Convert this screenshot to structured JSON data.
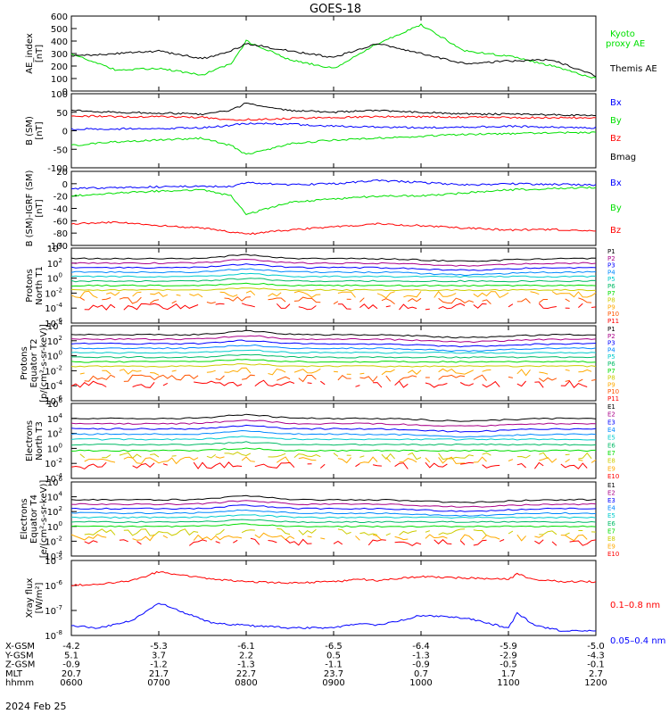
{
  "title": "GOES-18",
  "date_label": "2024 Feb 25",
  "colors": {
    "black": "#000000",
    "green": "#00e000",
    "blue": "#0000ff",
    "red": "#ff0000",
    "p_scale": [
      "#000000",
      "#aa0088",
      "#0000ff",
      "#0088ff",
      "#00cccc",
      "#00bb66",
      "#00dd00",
      "#cccc00",
      "#ffaa00",
      "#ff5500",
      "#ff0000",
      "#cc0000"
    ],
    "e_scale": [
      "#000000",
      "#aa0088",
      "#0000ff",
      "#0088ff",
      "#00cccc",
      "#00bb66",
      "#00dd00",
      "#cccc00",
      "#ffaa00",
      "#ff0000",
      "#cc0000"
    ]
  },
  "x_ticks": [
    "0600",
    "0700",
    "0800",
    "0900",
    "1000",
    "1100",
    "1200"
  ],
  "ephemeris": {
    "labels": [
      "X-GSM",
      "Y-GSM",
      "Z-GSM",
      "MLT",
      "hhmm"
    ],
    "rows": [
      [
        "-4.2",
        "-5.3",
        "-6.1",
        "-6.5",
        "-6.4",
        "-5.9",
        "-5.0"
      ],
      [
        "5.1",
        "3.7",
        "2.2",
        "0.5",
        "-1.3",
        "-2.9",
        "-4.3"
      ],
      [
        "-0.9",
        "-1.2",
        "-1.3",
        "-1.1",
        "-0.9",
        "-0.5",
        "-0.1"
      ],
      [
        "20.7",
        "21.7",
        "22.7",
        "23.7",
        "0.7",
        "1.7",
        "2.7"
      ],
      [
        "0600",
        "0700",
        "0800",
        "0900",
        "1000",
        "1100",
        "1200"
      ]
    ]
  },
  "chart_data": [
    {
      "id": "ae",
      "type": "line",
      "ylabel": "AE_index\n[nT]",
      "ylim": [
        0,
        600
      ],
      "yticks": [
        "600",
        "500",
        "400",
        "300",
        "200",
        "100",
        "0"
      ],
      "legend": [
        {
          "text": "Kyoto\nproxy AE",
          "color": "#00e000"
        },
        {
          "text": "Themis AE",
          "color": "#000000"
        }
      ],
      "x_hours": [
        6,
        6.5,
        7,
        7.5,
        7.83,
        8,
        8.5,
        9,
        9.5,
        10,
        10.5,
        11,
        11.5,
        12
      ],
      "series": [
        {
          "name": "Kyoto proxy AE",
          "color": "#00e000",
          "values": [
            300,
            170,
            180,
            130,
            220,
            400,
            250,
            180,
            380,
            530,
            320,
            280,
            200,
            100
          ]
        },
        {
          "name": "Themis AE",
          "color": "#000000",
          "values": [
            280,
            300,
            320,
            260,
            320,
            380,
            320,
            270,
            380,
            300,
            220,
            240,
            250,
            120
          ]
        }
      ]
    },
    {
      "id": "b",
      "type": "line",
      "ylabel": "B (SM)\n[nT]",
      "ylim": [
        -100,
        100
      ],
      "yticks": [
        "100",
        "50",
        "0",
        "-50",
        "-100"
      ],
      "legend": [
        {
          "text": "Bx",
          "color": "#0000ff"
        },
        {
          "text": "By",
          "color": "#00e000"
        },
        {
          "text": "Bz",
          "color": "#ff0000"
        },
        {
          "text": "Bmag",
          "color": "#000000"
        }
      ],
      "x_hours": [
        6,
        6.5,
        7,
        7.5,
        7.83,
        8,
        8.5,
        9,
        9.5,
        10,
        10.5,
        11,
        11.5,
        12
      ],
      "series": [
        {
          "name": "Bx",
          "color": "#0000ff",
          "values": [
            5,
            5,
            6,
            8,
            15,
            20,
            18,
            12,
            10,
            8,
            10,
            12,
            10,
            8
          ]
        },
        {
          "name": "By",
          "color": "#00e000",
          "values": [
            -40,
            -30,
            -25,
            -20,
            -40,
            -65,
            -35,
            -25,
            -20,
            -15,
            -10,
            -8,
            -5,
            -5
          ]
        },
        {
          "name": "Bz",
          "color": "#ff0000",
          "values": [
            40,
            38,
            38,
            36,
            30,
            30,
            33,
            36,
            38,
            38,
            37,
            36,
            35,
            35
          ]
        },
        {
          "name": "Bmag",
          "color": "#000000",
          "values": [
            55,
            50,
            48,
            45,
            55,
            75,
            55,
            50,
            55,
            50,
            45,
            45,
            43,
            42
          ]
        }
      ]
    },
    {
      "id": "b_igrf",
      "type": "line",
      "ylabel": "B (SM)-IGRF (SM)\n[nT]",
      "ylim": [
        -100,
        20
      ],
      "yticks": [
        "20",
        "0",
        "-20",
        "-40",
        "-60",
        "-80",
        "-100"
      ],
      "legend": [
        {
          "text": "Bx",
          "color": "#0000ff"
        },
        {
          "text": "By",
          "color": "#00e000"
        },
        {
          "text": "Bz",
          "color": "#ff0000"
        }
      ],
      "x_hours": [
        6,
        6.5,
        7,
        7.5,
        7.83,
        8,
        8.5,
        9,
        9.5,
        10,
        10.5,
        11,
        11.5,
        12
      ],
      "series": [
        {
          "name": "Bx",
          "color": "#0000ff",
          "values": [
            -8,
            -6,
            -5,
            -4,
            -5,
            2,
            -2,
            0,
            5,
            2,
            -2,
            0,
            -1,
            -2
          ]
        },
        {
          "name": "By",
          "color": "#00e000",
          "values": [
            -20,
            -15,
            -12,
            -10,
            -20,
            -50,
            -30,
            -25,
            -20,
            -20,
            -15,
            -10,
            -8,
            -6
          ]
        },
        {
          "name": "Bz",
          "color": "#ff0000",
          "values": [
            -65,
            -62,
            -68,
            -72,
            -78,
            -82,
            -75,
            -70,
            -65,
            -68,
            -72,
            -75,
            -74,
            -76
          ]
        }
      ]
    },
    {
      "id": "p_n",
      "type": "line",
      "log": true,
      "ylabel": "Protons\nNorth T1",
      "ylim_exp": [
        -6,
        4
      ],
      "yticks_exp": [
        4,
        2,
        0,
        -2,
        -4,
        -6
      ],
      "channels": [
        "P1",
        "P2",
        "P3",
        "P4",
        "P5",
        "P6",
        "P7",
        "P8",
        "P9",
        "P10",
        "P11"
      ],
      "levels_exp": [
        2.6,
        2.0,
        1.4,
        0.8,
        0.2,
        -0.4,
        -1.0,
        -1.6,
        -2.2,
        -3.0,
        -3.8
      ]
    },
    {
      "id": "p_e",
      "type": "line",
      "log": true,
      "ylabel": "Protons\nEquator T2\n[p/(cm²-s-sr-keV)]",
      "ylim_exp": [
        -6,
        4
      ],
      "yticks_exp": [
        4,
        2,
        0,
        -2,
        -4,
        -6
      ],
      "channels": [
        "P1",
        "P2",
        "P3",
        "P4",
        "P5",
        "P6",
        "P7",
        "P8",
        "P9",
        "P10",
        "P11"
      ],
      "levels_exp": [
        2.8,
        2.2,
        1.6,
        1.0,
        0.4,
        -0.2,
        -0.8,
        -1.4,
        -2.2,
        -3.0,
        -3.8
      ]
    },
    {
      "id": "e_n",
      "type": "line",
      "log": true,
      "ylabel": "Electrons\nNorth T3",
      "ylim_exp": [
        -4,
        6
      ],
      "yticks_exp": [
        6,
        4,
        2,
        0,
        -2,
        -4
      ],
      "channels": [
        "E1",
        "E2",
        "E3",
        "E4",
        "E5",
        "E6",
        "E7",
        "E8",
        "E9",
        "E10"
      ],
      "levels_exp": [
        4.0,
        3.3,
        2.6,
        1.9,
        1.2,
        0.5,
        -0.3,
        -1.0,
        -1.6,
        -2.3
      ]
    },
    {
      "id": "e_e",
      "type": "line",
      "log": true,
      "ylabel": "Electrons\nEquator T4\n[e/(cm²-s-sr-keV)]",
      "ylim_exp": [
        -4,
        6
      ],
      "yticks_exp": [
        6,
        4,
        2,
        0,
        -2,
        -4
      ],
      "channels": [
        "E1",
        "E2",
        "E3",
        "E4",
        "E5",
        "E6",
        "E7",
        "E8",
        "E9",
        "E10"
      ],
      "levels_exp": [
        3.6,
        3.0,
        2.4,
        1.8,
        1.2,
        0.6,
        0.0,
        -0.8,
        -1.5,
        -2.2
      ]
    },
    {
      "id": "xray",
      "type": "line",
      "log": true,
      "ylabel": "Xray flux\n[W/m²]",
      "ylim_exp": [
        -8,
        -5
      ],
      "yticks_exp": [
        -5,
        -6,
        -7,
        -8
      ],
      "legend": [
        {
          "text": "0.1–0.8 nm",
          "color": "#ff0000"
        },
        {
          "text": "0.05–0.4 nm",
          "color": "#0000ff"
        }
      ],
      "x_hours": [
        6,
        6.3,
        6.7,
        7,
        7.3,
        7.6,
        8,
        8.5,
        9,
        9.3,
        9.5,
        10,
        10.5,
        11,
        11.1,
        11.3,
        11.6,
        12
      ],
      "series": [
        {
          "name": "0.1–0.8 nm",
          "color": "#ff0000",
          "values_exp": [
            -6.0,
            -5.95,
            -5.8,
            -5.45,
            -5.6,
            -5.75,
            -5.85,
            -5.9,
            -5.85,
            -5.75,
            -5.8,
            -5.65,
            -5.7,
            -5.75,
            -5.55,
            -5.75,
            -5.85,
            -5.85
          ]
        },
        {
          "name": "0.05–0.4 nm",
          "color": "#0000ff",
          "values_exp": [
            -7.6,
            -7.7,
            -7.4,
            -6.7,
            -7.1,
            -7.5,
            -7.6,
            -7.7,
            -7.7,
            -7.5,
            -7.6,
            -7.2,
            -7.3,
            -7.7,
            -7.1,
            -7.6,
            -7.8,
            -7.8
          ]
        }
      ]
    }
  ]
}
